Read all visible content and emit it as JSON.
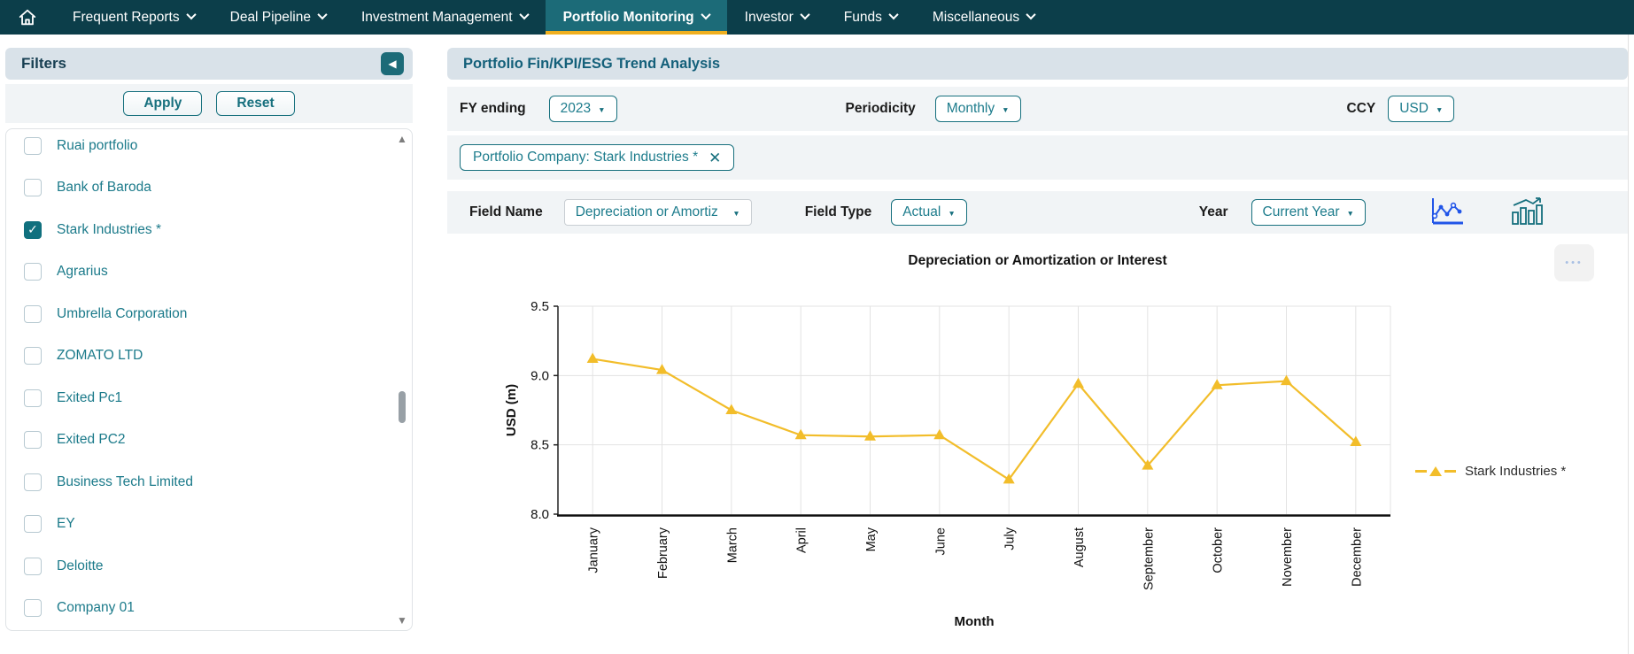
{
  "colors": {
    "nav_bg": "#0c3e4a",
    "nav_active_bg": "#1c6b78",
    "active_underline": "#efaf1e",
    "accent_teal": "#17707e",
    "active_view_icon_blue": "#2155e8"
  },
  "icons": {
    "collapse_left": "◀",
    "caret_down": "▼",
    "close": "✕",
    "check": "✓",
    "scroll_up": "▲",
    "scroll_down": "▼",
    "menu_dots": "•••"
  },
  "nav": {
    "items": [
      {
        "label": "Frequent Reports",
        "active": false
      },
      {
        "label": "Deal Pipeline",
        "active": false
      },
      {
        "label": "Investment Management",
        "active": false
      },
      {
        "label": "Portfolio Monitoring",
        "active": true
      },
      {
        "label": "Investor",
        "active": false
      },
      {
        "label": "Funds",
        "active": false
      },
      {
        "label": "Miscellaneous",
        "active": false
      }
    ]
  },
  "sidebar": {
    "title": "Filters",
    "apply_label": "Apply",
    "reset_label": "Reset",
    "companies": [
      {
        "label": "Ruai portfolio",
        "checked": false
      },
      {
        "label": "Bank of Baroda",
        "checked": false
      },
      {
        "label": "Stark Industries *",
        "checked": true
      },
      {
        "label": "Agrarius",
        "checked": false
      },
      {
        "label": "Umbrella Corporation",
        "checked": false
      },
      {
        "label": "ZOMATO LTD",
        "checked": false
      },
      {
        "label": "Exited Pc1",
        "checked": false
      },
      {
        "label": "Exited PC2",
        "checked": false
      },
      {
        "label": "Business Tech Limited",
        "checked": false
      },
      {
        "label": "EY",
        "checked": false
      },
      {
        "label": "Deloitte",
        "checked": false
      },
      {
        "label": "Company 01",
        "checked": false
      }
    ]
  },
  "main": {
    "title": "Portfolio Fin/KPI/ESG Trend Analysis",
    "filters": {
      "fy_label": "FY ending",
      "fy_value": "2023",
      "periodicity_label": "Periodicity",
      "periodicity_value": "Monthly",
      "ccy_label": "CCY",
      "ccy_value": "USD",
      "company_tag": "Portfolio Company: Stark Industries *",
      "field_name_label": "Field Name",
      "field_name_value": "Depreciation or Amortiz",
      "field_type_label": "Field Type",
      "field_type_value": "Actual",
      "year_label": "Year",
      "year_value": "Current Year"
    }
  },
  "chart_data": {
    "type": "line",
    "title": "Depreciation or Amortization or Interest",
    "xlabel": "Month",
    "ylabel": "USD (m)",
    "categories": [
      "January",
      "February",
      "March",
      "April",
      "May",
      "June",
      "July",
      "August",
      "September",
      "October",
      "November",
      "December"
    ],
    "series": [
      {
        "name": "Stark Industries *",
        "color": "#f2bd2a",
        "marker": "triangle",
        "values": [
          9.12,
          9.04,
          8.75,
          8.57,
          8.56,
          8.57,
          8.25,
          8.94,
          8.35,
          8.93,
          8.96,
          8.52
        ]
      }
    ],
    "ylim": [
      8.0,
      9.5
    ],
    "yticks": [
      8.0,
      8.5,
      9.0,
      9.5
    ],
    "grid": true,
    "legend_position": "right"
  }
}
